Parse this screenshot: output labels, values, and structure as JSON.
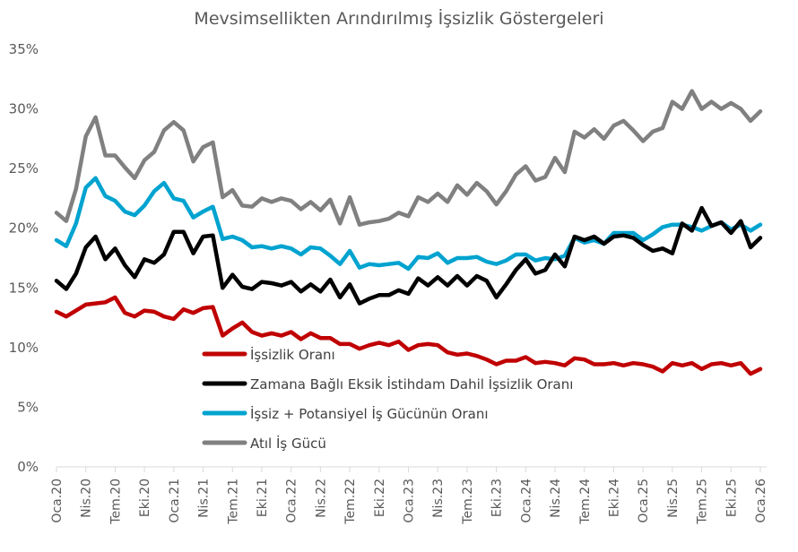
{
  "chart_data": {
    "type": "line",
    "title": "Mevsimsellikten Arındırılmış İşsizlik Göstergeleri",
    "xlabel": "",
    "ylabel": "",
    "ylim": [
      0,
      35
    ],
    "yticks": [
      "0%",
      "5%",
      "10%",
      "15%",
      "20%",
      "25%",
      "30%",
      "35%"
    ],
    "ytick_values": [
      0,
      5,
      10,
      15,
      20,
      25,
      30,
      35
    ],
    "grid": false,
    "legend_position": "bottom-center-inside",
    "x_start": "Oca.20",
    "x_end": "Oca.26",
    "x_count": 73,
    "xtick_labels": [
      "Oca.20",
      "Nis.20",
      "Tem.20",
      "Eki.20",
      "Oca.21",
      "Nis.21",
      "Tem.21",
      "Eki.21",
      "Oca.22",
      "Nis.22",
      "Tem.22",
      "Eki.22",
      "Oca.23",
      "Nis.23",
      "Tem.23",
      "Eki.23",
      "Oca.24",
      "Nis.24",
      "Tem.24",
      "Eki.24",
      "Oca.25",
      "Nis.25",
      "Tem.25",
      "Eki.25",
      "Oca.26"
    ],
    "xtick_step_months": 3,
    "series": [
      {
        "name": "İşsizlik Oranı",
        "color": "#C00000",
        "values": [
          13.0,
          12.6,
          13.1,
          13.6,
          13.7,
          13.8,
          14.2,
          12.9,
          12.6,
          13.1,
          13.0,
          12.6,
          12.4,
          13.2,
          12.9,
          13.3,
          13.4,
          11.0,
          11.6,
          12.1,
          11.3,
          11.0,
          11.2,
          11.0,
          11.3,
          10.7,
          11.2,
          10.8,
          10.8,
          10.3,
          10.3,
          9.9,
          10.2,
          10.4,
          10.2,
          10.5,
          9.8,
          10.2,
          10.3,
          10.2,
          9.6,
          9.4,
          9.5,
          9.3,
          9.0,
          8.6,
          8.9,
          8.9,
          9.2,
          8.7,
          8.8,
          8.7,
          8.5,
          9.1,
          9.0,
          8.6,
          8.6,
          8.7,
          8.5,
          8.7,
          8.6,
          8.4,
          8.0,
          8.7,
          8.5,
          8.7,
          8.2,
          8.6,
          8.7,
          8.5,
          8.7,
          7.8,
          8.2
        ]
      },
      {
        "name": "Zamana Bağlı Eksik İstihdam Dahil İşsizlik Oranı",
        "color": "#000000",
        "values": [
          15.6,
          14.9,
          16.2,
          18.4,
          19.3,
          17.4,
          18.3,
          16.9,
          15.9,
          17.4,
          17.1,
          17.8,
          19.7,
          19.7,
          17.9,
          19.3,
          19.4,
          15.0,
          16.1,
          15.1,
          14.9,
          15.5,
          15.4,
          15.2,
          15.5,
          14.7,
          15.3,
          14.7,
          15.7,
          14.2,
          15.3,
          13.7,
          14.1,
          14.4,
          14.4,
          14.8,
          14.5,
          15.8,
          15.2,
          15.9,
          15.2,
          16.0,
          15.2,
          16.0,
          15.6,
          14.2,
          15.3,
          16.5,
          17.4,
          16.2,
          16.5,
          17.8,
          16.8,
          19.3,
          19.0,
          19.3,
          18.7,
          19.3,
          19.4,
          19.2,
          18.6,
          18.1,
          18.3,
          17.9,
          20.4,
          19.8,
          21.7,
          20.2,
          20.5,
          19.6,
          20.6,
          18.4,
          19.2
        ]
      },
      {
        "name": "İşsiz + Potansiyel İş Gücünün Oranı",
        "color": "#00A3D0",
        "values": [
          19.0,
          18.5,
          20.4,
          23.4,
          24.2,
          22.7,
          22.3,
          21.4,
          21.1,
          21.9,
          23.1,
          23.8,
          22.5,
          22.3,
          20.9,
          21.4,
          21.8,
          19.1,
          19.3,
          19.0,
          18.4,
          18.5,
          18.3,
          18.5,
          18.3,
          17.8,
          18.4,
          18.3,
          17.7,
          17.0,
          18.1,
          16.7,
          17.0,
          16.9,
          17.0,
          17.1,
          16.6,
          17.6,
          17.5,
          17.9,
          17.1,
          17.5,
          17.5,
          17.6,
          17.2,
          17.0,
          17.3,
          17.8,
          17.8,
          17.3,
          17.5,
          17.4,
          17.7,
          19.2,
          18.8,
          19.0,
          18.7,
          19.6,
          19.6,
          19.6,
          19.0,
          19.5,
          20.1,
          20.3,
          20.3,
          20.1,
          19.8,
          20.2,
          20.5,
          19.9,
          20.3,
          19.8,
          20.3
        ]
      },
      {
        "name": "Atıl İş Gücü",
        "color": "#808080",
        "values": [
          21.3,
          20.6,
          23.3,
          27.7,
          29.3,
          26.1,
          26.1,
          25.1,
          24.2,
          25.7,
          26.4,
          28.2,
          28.9,
          28.2,
          25.6,
          26.8,
          27.2,
          22.6,
          23.2,
          21.9,
          21.8,
          22.5,
          22.2,
          22.5,
          22.3,
          21.6,
          22.2,
          21.5,
          22.4,
          20.4,
          22.6,
          20.3,
          20.5,
          20.6,
          20.8,
          21.3,
          21.0,
          22.6,
          22.2,
          22.9,
          22.2,
          23.6,
          22.8,
          23.8,
          23.1,
          22.0,
          23.1,
          24.5,
          25.2,
          24.0,
          24.3,
          25.9,
          24.7,
          28.1,
          27.6,
          28.3,
          27.5,
          28.6,
          29.0,
          28.2,
          27.3,
          28.1,
          28.4,
          30.6,
          30.0,
          31.5,
          30.0,
          30.6,
          30.0,
          30.5,
          30.0,
          29.0,
          29.8
        ]
      }
    ]
  }
}
